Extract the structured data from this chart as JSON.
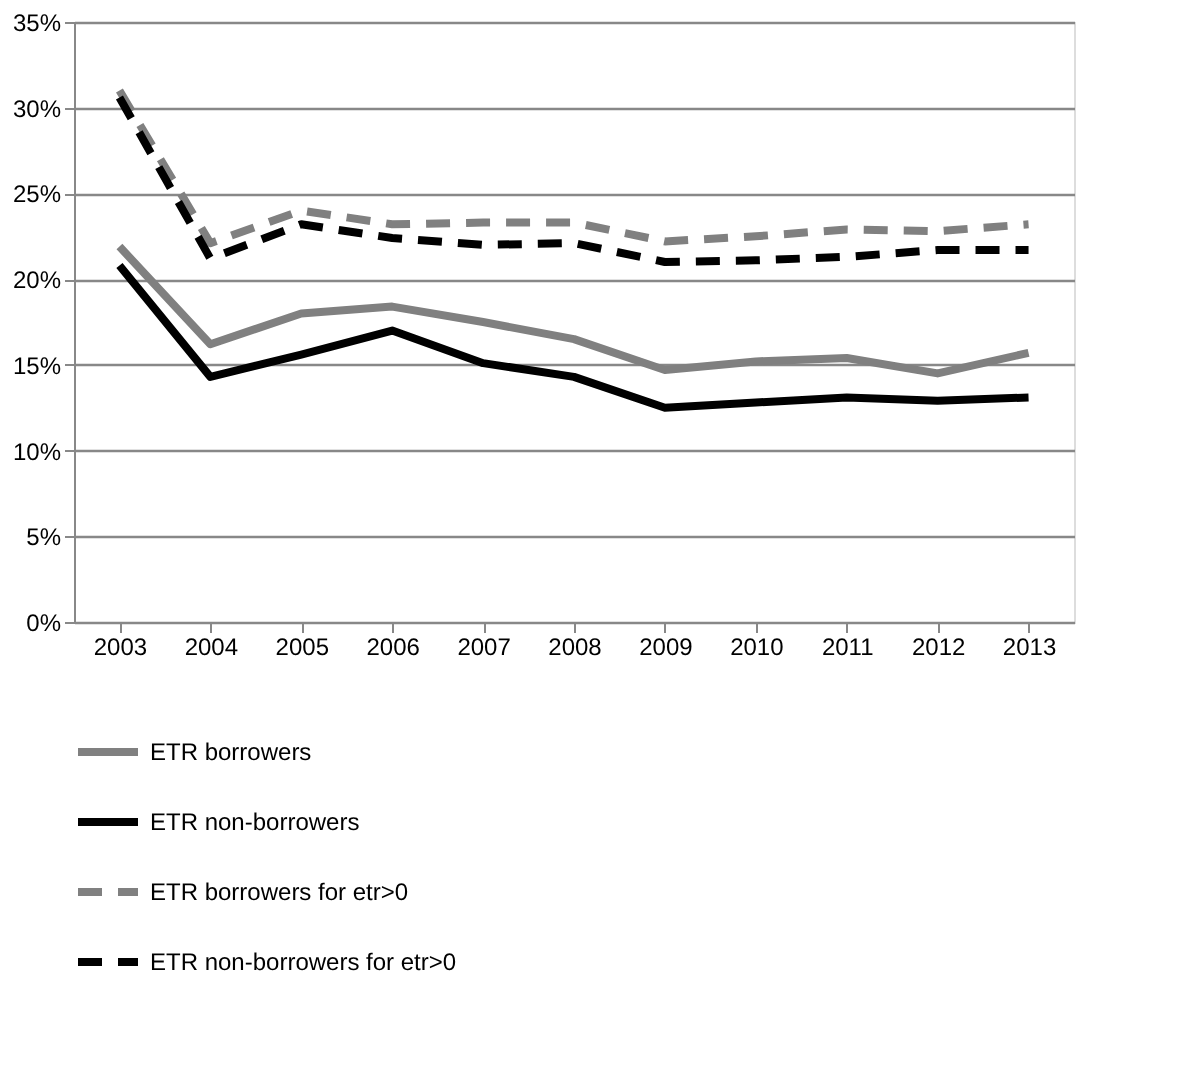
{
  "chart_data": {
    "type": "line",
    "categories": [
      "2003",
      "2004",
      "2005",
      "2006",
      "2007",
      "2008",
      "2009",
      "2010",
      "2011",
      "2012",
      "2013"
    ],
    "series": [
      {
        "name": "ETR borrowers",
        "color": "#808080",
        "line_style": "solid",
        "values": [
          21.9,
          16.2,
          18.0,
          18.4,
          17.5,
          16.5,
          14.7,
          15.2,
          15.4,
          14.5,
          15.7
        ]
      },
      {
        "name": "ETR non-borrowers",
        "color": "#000000",
        "line_style": "solid",
        "values": [
          20.8,
          14.3,
          15.6,
          17.0,
          15.1,
          14.3,
          12.5,
          12.8,
          13.1,
          12.9,
          13.1
        ]
      },
      {
        "name": "ETR borrowers for etr>0",
        "color": "#808080",
        "line_style": "dashed",
        "values": [
          31.0,
          22.1,
          24.0,
          23.2,
          23.3,
          23.3,
          22.2,
          22.5,
          22.9,
          22.8,
          23.2
        ]
      },
      {
        "name": "ETR non-borrowers for etr>0",
        "color": "#000000",
        "line_style": "dashed",
        "values": [
          30.6,
          21.2,
          23.2,
          22.4,
          22.0,
          22.1,
          21.0,
          21.1,
          21.3,
          21.7,
          21.7
        ]
      }
    ],
    "ylim": [
      0,
      35
    ],
    "yticks": [
      {
        "value": 0,
        "label": "0%"
      },
      {
        "value": 5,
        "label": "5%"
      },
      {
        "value": 10,
        "label": "10%"
      },
      {
        "value": 15,
        "label": "15%"
      },
      {
        "value": 20,
        "label": "20%"
      },
      {
        "value": 25,
        "label": "25%"
      },
      {
        "value": 30,
        "label": "30%"
      },
      {
        "value": 35,
        "label": "35%"
      }
    ],
    "grid": "y",
    "legend": "bottom",
    "marker": "none"
  }
}
